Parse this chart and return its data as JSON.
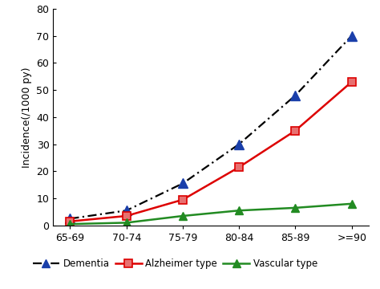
{
  "x_labels": [
    "65-69",
    "70-74",
    "75-79",
    "80-84",
    "85-89",
    ">=90"
  ],
  "x_positions": [
    0,
    1,
    2,
    3,
    4,
    5
  ],
  "dementia": [
    2.5,
    5.5,
    15.5,
    30.0,
    48.0,
    70.0
  ],
  "alzheimer": [
    1.5,
    3.5,
    9.5,
    21.5,
    35.0,
    53.0
  ],
  "vascular": [
    0.5,
    1.0,
    3.5,
    5.5,
    6.5,
    8.0
  ],
  "dementia_line_color": "#000000",
  "dementia_marker_color": "#1a3faa",
  "alzheimer_color": "#dd0000",
  "alzheimer_marker_fill": "#e87070",
  "vascular_color": "#228b22",
  "ylabel": "Incidence(/1000 py)",
  "ylim": [
    0,
    80
  ],
  "yticks": [
    0,
    10,
    20,
    30,
    40,
    50,
    60,
    70,
    80
  ],
  "legend_dementia": "Dementia",
  "legend_alzheimer": "Alzheimer type",
  "legend_vascular": "Vascular type",
  "background_color": "#ffffff"
}
